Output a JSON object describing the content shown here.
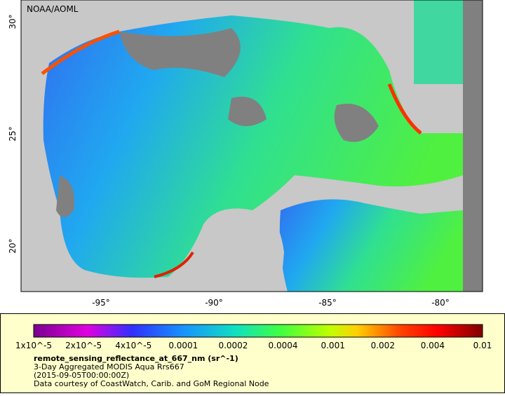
{
  "map": {
    "attribution": "NOAA/AOML",
    "lat_ticks": [
      "30°",
      "25°",
      "20°"
    ],
    "lon_ticks": [
      "-95°",
      "-90°",
      "-85°",
      "-80°"
    ],
    "colorbar_labels": [
      "1x10^-5",
      "2x10^-5",
      "4x10^-5",
      "0.0001",
      "0.0002",
      "0.0004",
      "0.001",
      "0.002",
      "0.004",
      "0.01"
    ],
    "variable": "remote_sensing_reflectance_at_667_nm (sr^-1)",
    "description": "3-Day Aggregated MODIS Aqua Rrs667",
    "time": "(2015-09-05T00:00:00Z)",
    "credit": "Data courtesy of CoastWatch, Carib. and GoM Regional Node"
  }
}
